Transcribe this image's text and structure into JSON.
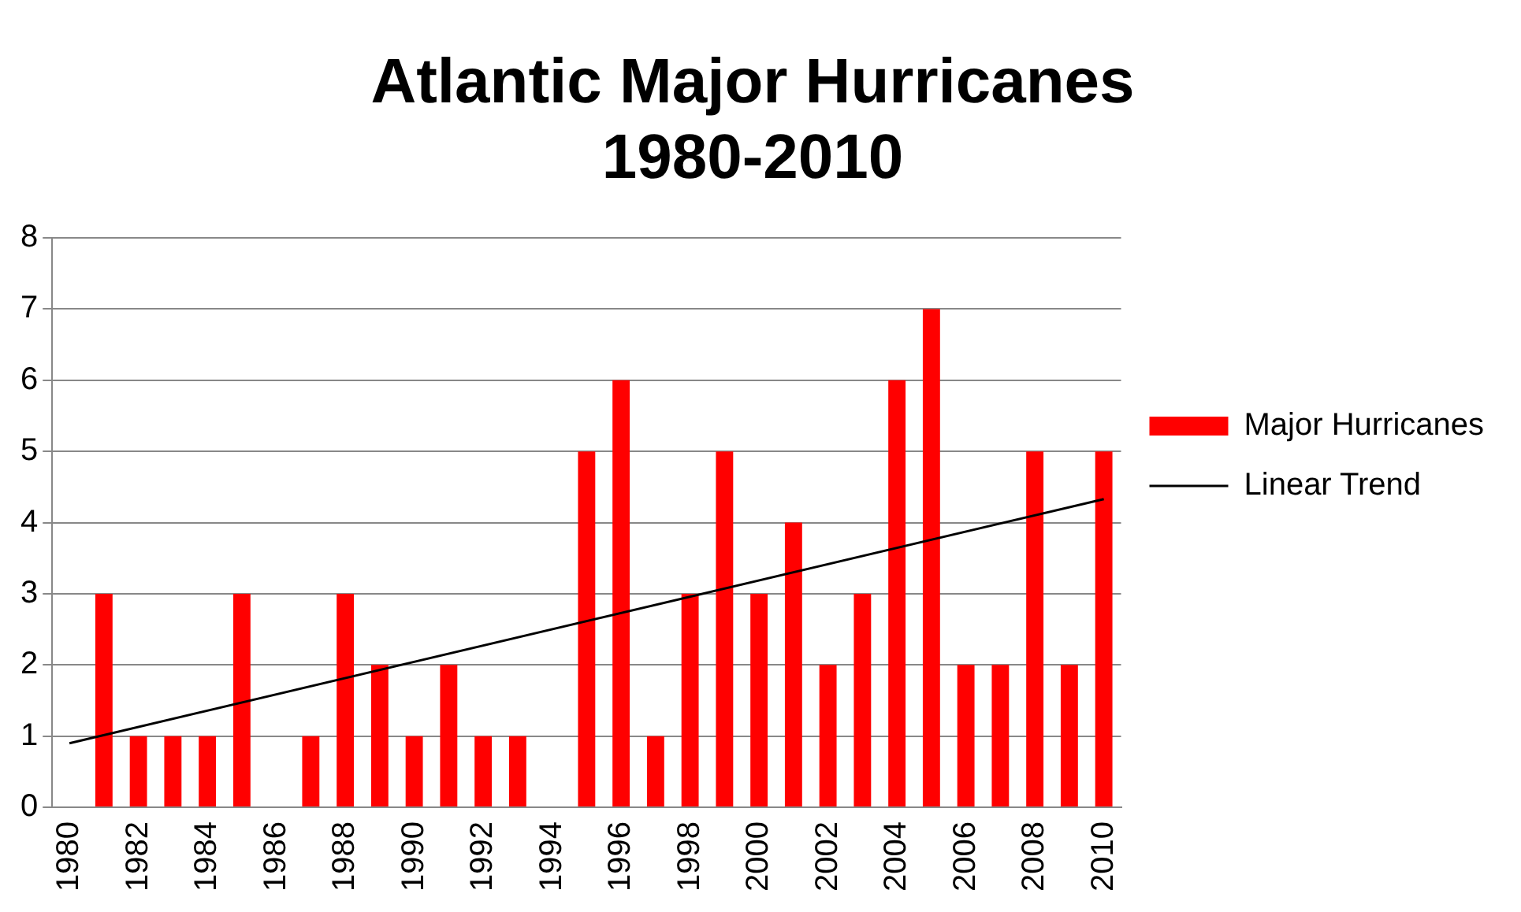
{
  "chart_data": {
    "type": "bar",
    "title": "Atlantic Major Hurricanes\n1980-2010",
    "categories": [
      "1980",
      null,
      "1982",
      null,
      "1984",
      null,
      "1986",
      null,
      "1988",
      null,
      "1990",
      null,
      "1992",
      null,
      "1994",
      null,
      "1996",
      null,
      "1998",
      null,
      "2000",
      null,
      "2002",
      null,
      "2004",
      null,
      "2006",
      null,
      "2008",
      null,
      "2010"
    ],
    "series": [
      {
        "name": "Major Hurricanes",
        "color": "#ff0000",
        "values": [
          0,
          3,
          1,
          1,
          1,
          3,
          0,
          1,
          3,
          2,
          1,
          2,
          1,
          1,
          0,
          5,
          6,
          1,
          3,
          5,
          3,
          4,
          2,
          3,
          6,
          7,
          2,
          2,
          5,
          2,
          5
        ]
      },
      {
        "name": "Linear Trend",
        "type": "line",
        "color": "#000000",
        "values": [
          0.9,
          null,
          null,
          null,
          null,
          null,
          null,
          null,
          null,
          null,
          null,
          null,
          null,
          null,
          null,
          null,
          null,
          null,
          null,
          null,
          null,
          null,
          null,
          null,
          null,
          null,
          null,
          null,
          null,
          null,
          4.33
        ]
      }
    ],
    "ylim": [
      0,
      8
    ],
    "yticks": [
      0,
      1,
      2,
      3,
      4,
      5,
      6,
      7,
      8
    ],
    "grid": "y",
    "legend": "right",
    "marker": "none"
  }
}
